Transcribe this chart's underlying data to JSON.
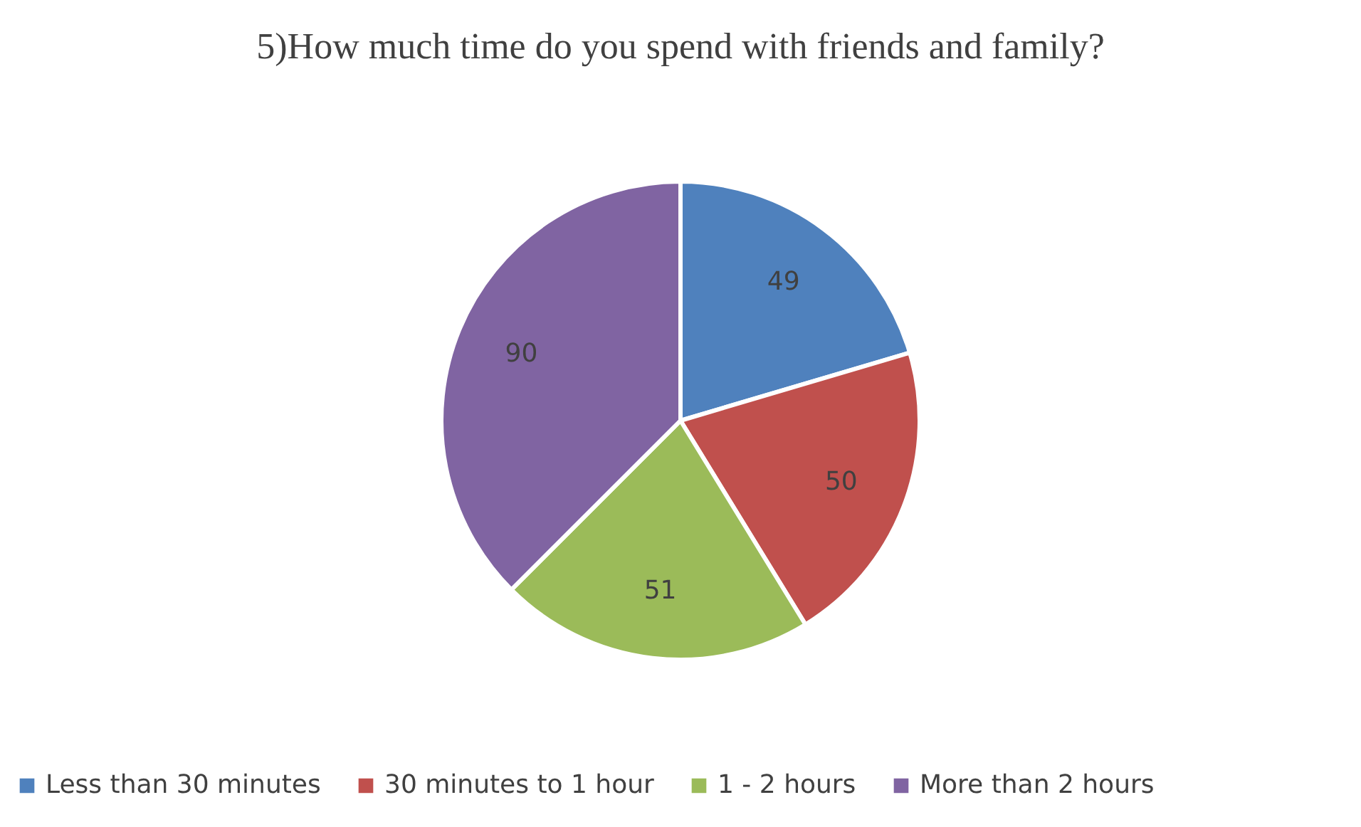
{
  "chart_data": {
    "type": "pie",
    "title": "5)How much time do you spend with friends and family?",
    "categories": [
      "Less than 30 minutes",
      "30 minutes to 1 hour",
      "1 - 2 hours",
      "More than 2 hours"
    ],
    "values": [
      49,
      50,
      51,
      90
    ],
    "colors": [
      "#4f81bd",
      "#c0504d",
      "#9bbb59",
      "#8064a2"
    ],
    "data_labels": true,
    "legend": "bottom"
  }
}
